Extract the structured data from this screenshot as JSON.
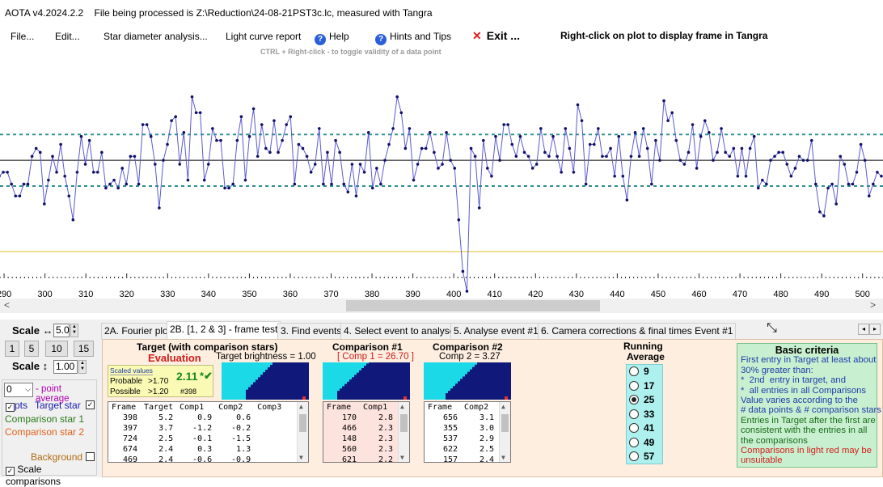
{
  "titlebar": {
    "app": "AOTA v4.2024.2.2",
    "file_text": "File being processed is Z:\\Reduction\\24-08-21PST3c.lc, measured with Tangra"
  },
  "menu": {
    "file": "File...",
    "edit": "Edit...",
    "star_diameter": "Star diameter analysis...",
    "light_curve_report": "Light curve report",
    "help": "Help",
    "hints": "Hints and Tips",
    "exit": "Exit ...",
    "toggle_hint": "CTRL + Right-click  -  to toggle validity of a data point",
    "right_click_hint": "Right-click on plot to display frame in Tangra"
  },
  "chart_data": {
    "type": "line",
    "xlim": [
      289,
      505
    ],
    "ylim": [
      -3.3,
      2.45
    ],
    "mean_line": 0,
    "upper_band": 0.65,
    "lower_band": -0.65,
    "event_level": -2.3,
    "xticks": [
      290,
      300,
      310,
      320,
      330,
      340,
      350,
      360,
      370,
      380,
      390,
      400,
      410,
      420,
      430,
      440,
      450,
      460,
      470,
      480,
      490,
      500
    ],
    "series": [
      {
        "y": [
          -0.4,
          -0.3,
          -0.3,
          -0.6,
          -0.9,
          -0.9,
          -0.6,
          -0.6,
          0.1,
          0.3,
          0.2,
          -1.1,
          -0.5,
          0.1,
          -0.3,
          0.4,
          -0.4,
          -0.9,
          -1.5,
          -0.3,
          0.6,
          -0.1,
          0.5,
          -0.3,
          -0.3,
          0.2,
          -0.7,
          -0.6,
          -0.5,
          -0.7,
          -0.2,
          -0.6,
          0.1,
          0.1,
          -0.6,
          0.9,
          0.9,
          0.6,
          -0.1,
          -1.2,
          0.0,
          0.4,
          1.0,
          1.1,
          -0.1,
          0.7,
          -0.5,
          1.6,
          1.2,
          1.2,
          -0.5,
          -0.1,
          0.8,
          0.5,
          0.5,
          -0.7,
          -0.7,
          -0.6,
          0.5,
          1.1,
          -0.5,
          0.6,
          1.3,
          0.1,
          0.9,
          0.3,
          0.2,
          1.0,
          0.2,
          0.5,
          0.9,
          1.1,
          -0.6,
          0.4,
          0.3,
          0.1,
          -0.3,
          -0.1,
          0.8,
          -0.6,
          0.2,
          -0.6,
          0.5,
          0.2,
          -0.6,
          -0.8,
          -0.1,
          -0.9,
          -0.1,
          -0.3,
          0.7,
          -0.7,
          -0.2,
          -0.6,
          0.0,
          0.4,
          0.8,
          1.6,
          1.2,
          0.3,
          0.8,
          -0.5,
          -0.1,
          0.3,
          0.3,
          0.7,
          0.2,
          -0.2,
          -0.1,
          0.7,
          0.0,
          -0.2,
          -1.5,
          -2.8,
          -3.3,
          0.3,
          0.1,
          -1.2,
          0.5,
          -0.2,
          -0.4,
          0.6,
          0.0,
          0.9,
          0.9,
          0.4,
          0.1,
          0.6,
          0.2,
          0.1,
          -0.2,
          -0.1,
          0.8,
          0.2,
          0.1,
          0.6,
          0.1,
          -0.3,
          0.8,
          0.3,
          -0.3,
          1.4,
          1.0,
          -0.6,
          0.4,
          0.4,
          0.8,
          0.1,
          0.1,
          0.3,
          -0.4,
          0.6,
          -0.4,
          -1.0,
          0.1,
          0.7,
          0.1,
          0.8,
          0.3,
          -0.6,
          0.5,
          0.0,
          1.5,
          1.0,
          1.2,
          0.5,
          0.0,
          -0.1,
          0.2,
          0.9,
          -0.2,
          0.6,
          1.0,
          0.7,
          0.0,
          0.2,
          0.8,
          0.2,
          0.1,
          0.3,
          -0.4,
          0.3,
          -0.4,
          0.3,
          0.6,
          -0.7,
          -0.5,
          -0.6,
          0.0,
          0.1,
          0.2,
          0.2,
          -0.1,
          -0.4,
          -0.2,
          0.1,
          0.0,
          0.0,
          0.5,
          -0.6,
          -1.3,
          -1.4,
          -0.7,
          -0.6,
          -1.1,
          0.1,
          -0.1,
          -0.6,
          -0.6,
          -0.3,
          0.4,
          0.0,
          -0.9,
          -0.6,
          -0.3,
          -0.4
        ]
      }
    ]
  },
  "tabs": [
    "2A. Fourier plot",
    "2B. [1, 2 & 3] - frame test",
    "3. Find events",
    "4. Select event to analyse",
    "5. Analyse event #1",
    "6. Camera corrections & final times Event #1"
  ],
  "left": {
    "scale_h_label": "Scale ↔",
    "scale_h_value": "5.0",
    "buttons": [
      "1",
      "5",
      "10",
      "15"
    ],
    "scale_v_label": "Scale ↕",
    "scale_v_value": "1.00",
    "point_avg_value": "0",
    "point_avg_label": "- point average",
    "pts_label": "pts",
    "target_star": "Target star",
    "comp1": "Comparison star 1",
    "comp2": "Comparison star 2",
    "background": "Background",
    "scale_comparisons": "Scale comparisons",
    "colors": {
      "target": "#1a1ab0",
      "comp1": "#2a7a1a",
      "comp2": "#e0621c",
      "point_avg": "#b000b0"
    }
  },
  "target": {
    "title": "Target (with comparison stars)",
    "evaluation": "Evaluation",
    "brightness": "Target  brightness = 1.00",
    "scaled_values": "Scaled values",
    "probable": "Probable",
    "probable_val": ">1.70",
    "possible": "Possible",
    "possible_val": ">1.20",
    "score": "2.11",
    "score_mark": "*✔",
    "frame_ref": "#398",
    "headers": [
      "Frame",
      "Target",
      "Comp1",
      "Comp2",
      "Comp3"
    ],
    "rows": [
      [
        "398",
        "5.2",
        "0.9",
        "0.6",
        ""
      ],
      [
        "397",
        "3.7",
        "-1.2",
        "-0.2",
        ""
      ],
      [
        "724",
        "2.5",
        "-0.1",
        "-1.5",
        ""
      ],
      [
        "674",
        "2.4",
        "0.3",
        "1.3",
        ""
      ],
      [
        "469",
        "2.4",
        "-0.6",
        "-0.9",
        ""
      ]
    ]
  },
  "comp1": {
    "title": "Comparison #1",
    "subtitle": "[ Comp 1 = 26.70 ]",
    "headers": [
      "Frame",
      "Comp1"
    ],
    "rows": [
      [
        "170",
        "2.8"
      ],
      [
        "466",
        "2.3"
      ],
      [
        "148",
        "2.3"
      ],
      [
        "560",
        "2.3"
      ],
      [
        "621",
        "2.2"
      ]
    ]
  },
  "comp2": {
    "title": "Comparison #2",
    "subtitle": "Comp 2 = 3.27",
    "headers": [
      "Frame",
      "Comp2"
    ],
    "rows": [
      [
        "656",
        "3.1"
      ],
      [
        "355",
        "3.0"
      ],
      [
        "537",
        "2.9"
      ],
      [
        "622",
        "2.5"
      ],
      [
        "157",
        "2.4"
      ]
    ]
  },
  "running_average": {
    "title_1": "Running",
    "title_2": "Average",
    "options": [
      "9",
      "17",
      "25",
      "33",
      "41",
      "49",
      "57"
    ],
    "selected": "25"
  },
  "criteria": {
    "title": "Basic criteria",
    "lines_blue_1": "First entry in Target at least about\n30% greater than:\n*  2nd  entry in target, and\n*  all entries in all Comparisons",
    "lines_blue_2": "Value varies according to the\n# data points & # comparison stars",
    "lines_green": "Entries in Target after the first are\nconsistent with the entries in all\nthe comparisons",
    "lines_red": "Comparisons in light red may be\nunsuitable"
  }
}
